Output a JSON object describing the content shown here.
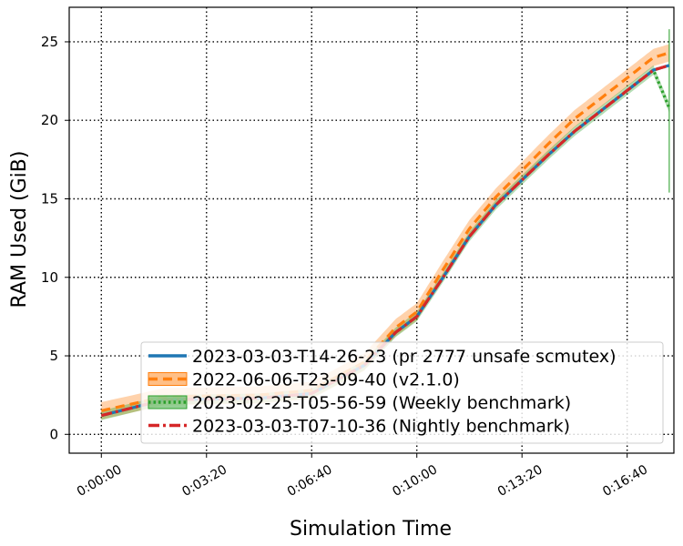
{
  "chart_data": {
    "type": "line",
    "xlabel": "Simulation Time",
    "ylabel": "RAM Used (GiB)",
    "xlim": [
      -1100,
      19600
    ],
    "ylim": [
      -1.2,
      27.2
    ],
    "x_ticks": [
      0,
      200,
      400,
      600,
      800,
      1000
    ],
    "x_tick_labels": [
      "0:00:00",
      "0:03:20",
      "0:06:40",
      "0:10:00",
      "0:13:20",
      "0:16:40"
    ],
    "y_ticks": [
      0,
      5,
      10,
      15,
      20,
      25
    ],
    "grid": true,
    "legend_position": "lower-right",
    "series": [
      {
        "name": "2023-03-03-T14-26-23 (pr 2777 unsafe scmutex)",
        "color": "#1f77b4",
        "style": "solid",
        "x": [
          0,
          120,
          300,
          400,
          500,
          560,
          600,
          650,
          700,
          750,
          800,
          850,
          900,
          950,
          1000,
          1050,
          1080
        ],
        "y": [
          1.2,
          2.2,
          2.3,
          2.6,
          4.4,
          6.5,
          7.5,
          10.0,
          12.6,
          14.6,
          16.2,
          17.8,
          19.3,
          20.6,
          21.9,
          23.2,
          23.5
        ]
      },
      {
        "name": "2022-06-06-T23-09-40 (v2.1.0)",
        "color": "#ff7f0e",
        "style": "dashed",
        "band": true,
        "x": [
          0,
          120,
          300,
          400,
          500,
          560,
          600,
          650,
          700,
          750,
          800,
          850,
          900,
          950,
          1000,
          1050,
          1080
        ],
        "y": [
          1.5,
          2.4,
          2.5,
          2.8,
          4.6,
          6.8,
          7.8,
          10.5,
          13.1,
          15.1,
          16.8,
          18.5,
          20.1,
          21.4,
          22.7,
          24.0,
          24.3
        ]
      },
      {
        "name": "2023-02-25-T05-56-59 (Weekly benchmark)",
        "color": "#2ca02c",
        "style": "dotted",
        "band": true,
        "x": [
          0,
          120,
          300,
          400,
          500,
          560,
          600,
          650,
          700,
          750,
          800,
          850,
          900,
          950,
          1000,
          1050,
          1080
        ],
        "y": [
          1.2,
          2.2,
          2.3,
          2.6,
          4.4,
          6.5,
          7.5,
          10.0,
          12.6,
          14.6,
          16.2,
          17.8,
          19.3,
          20.6,
          21.9,
          23.2,
          20.8
        ]
      },
      {
        "name": "2023-03-03-T07-10-36 (Nightly benchmark)",
        "color": "#d62728",
        "style": "dashdot",
        "x": [
          0,
          120,
          300,
          400,
          500,
          560,
          600,
          650,
          700,
          750,
          800,
          850,
          900,
          950,
          1000,
          1050,
          1080
        ],
        "y": [
          1.2,
          2.2,
          2.3,
          2.6,
          4.4,
          6.5,
          7.5,
          10.0,
          12.6,
          14.6,
          16.2,
          17.8,
          19.3,
          20.6,
          21.9,
          23.2,
          23.5
        ]
      }
    ]
  }
}
